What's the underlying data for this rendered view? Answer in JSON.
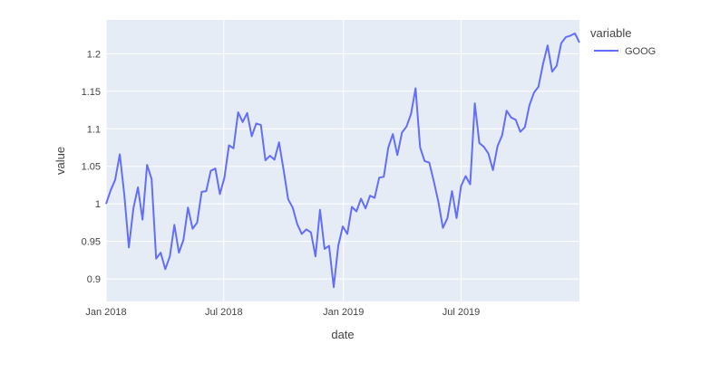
{
  "chart_data": {
    "type": "line",
    "xlabel": "date",
    "ylabel": "value",
    "x_ticks": [
      {
        "date": "2018-01-01",
        "label": "Jan 2018"
      },
      {
        "date": "2018-07-01",
        "label": "Jul 2018"
      },
      {
        "date": "2019-01-01",
        "label": "Jan 2019"
      },
      {
        "date": "2019-07-01",
        "label": "Jul 2019"
      }
    ],
    "y_ticks": [
      {
        "value": 0.9,
        "label": "0.9"
      },
      {
        "value": 0.95,
        "label": "0.95"
      },
      {
        "value": 1.0,
        "label": "1"
      },
      {
        "value": 1.05,
        "label": "1.05"
      },
      {
        "value": 1.1,
        "label": "1.1"
      },
      {
        "value": 1.15,
        "label": "1.15"
      },
      {
        "value": 1.2,
        "label": "1.2"
      }
    ],
    "xlim": [
      "2018-01-01",
      "2019-12-30"
    ],
    "ylim": [
      0.87,
      1.245
    ],
    "grid": true,
    "legend": {
      "title": "variable",
      "position": "right"
    },
    "colors": {
      "plot_bg": "#E5ECF6",
      "grid": "#FFFFFF",
      "series": "#636EFA"
    },
    "series": [
      {
        "name": "GOOG",
        "x": [
          "2018-01-01",
          "2018-01-08",
          "2018-01-15",
          "2018-01-22",
          "2018-01-29",
          "2018-02-05",
          "2018-02-12",
          "2018-02-19",
          "2018-02-26",
          "2018-03-05",
          "2018-03-12",
          "2018-03-19",
          "2018-03-26",
          "2018-04-02",
          "2018-04-09",
          "2018-04-16",
          "2018-04-23",
          "2018-04-30",
          "2018-05-07",
          "2018-05-14",
          "2018-05-21",
          "2018-05-28",
          "2018-06-04",
          "2018-06-11",
          "2018-06-18",
          "2018-06-25",
          "2018-07-02",
          "2018-07-09",
          "2018-07-16",
          "2018-07-23",
          "2018-07-30",
          "2018-08-06",
          "2018-08-13",
          "2018-08-20",
          "2018-08-27",
          "2018-09-03",
          "2018-09-10",
          "2018-09-17",
          "2018-09-24",
          "2018-10-01",
          "2018-10-08",
          "2018-10-15",
          "2018-10-22",
          "2018-10-29",
          "2018-11-05",
          "2018-11-12",
          "2018-11-19",
          "2018-11-26",
          "2018-12-03",
          "2018-12-10",
          "2018-12-17",
          "2018-12-24",
          "2018-12-31",
          "2019-01-07",
          "2019-01-14",
          "2019-01-21",
          "2019-01-28",
          "2019-02-04",
          "2019-02-11",
          "2019-02-18",
          "2019-02-25",
          "2019-03-04",
          "2019-03-11",
          "2019-03-18",
          "2019-03-25",
          "2019-04-01",
          "2019-04-08",
          "2019-04-15",
          "2019-04-22",
          "2019-04-29",
          "2019-05-06",
          "2019-05-13",
          "2019-05-20",
          "2019-05-27",
          "2019-06-03",
          "2019-06-10",
          "2019-06-17",
          "2019-06-24",
          "2019-07-01",
          "2019-07-08",
          "2019-07-15",
          "2019-07-22",
          "2019-07-29",
          "2019-08-05",
          "2019-08-12",
          "2019-08-19",
          "2019-08-26",
          "2019-09-02",
          "2019-09-09",
          "2019-09-16",
          "2019-09-23",
          "2019-09-30",
          "2019-10-07",
          "2019-10-14",
          "2019-10-21",
          "2019-10-28",
          "2019-11-04",
          "2019-11-11",
          "2019-11-18",
          "2019-11-25",
          "2019-12-02",
          "2019-12-09",
          "2019-12-16",
          "2019-12-23",
          "2019-12-30"
        ],
        "values": [
          1.0,
          1.018,
          1.032,
          1.066,
          1.012,
          0.942,
          0.994,
          1.022,
          0.979,
          1.052,
          1.033,
          0.927,
          0.935,
          0.913,
          0.93,
          0.972,
          0.935,
          0.952,
          0.995,
          0.967,
          0.975,
          1.016,
          1.017,
          1.044,
          1.047,
          1.013,
          1.035,
          1.078,
          1.074,
          1.122,
          1.109,
          1.121,
          1.09,
          1.107,
          1.105,
          1.058,
          1.064,
          1.059,
          1.082,
          1.045,
          1.006,
          0.995,
          0.973,
          0.96,
          0.966,
          0.962,
          0.93,
          0.992,
          0.94,
          0.944,
          0.889,
          0.944,
          0.97,
          0.96,
          0.996,
          0.99,
          1.007,
          0.994,
          1.011,
          1.008,
          1.035,
          1.036,
          1.075,
          1.093,
          1.065,
          1.095,
          1.103,
          1.12,
          1.154,
          1.075,
          1.057,
          1.055,
          1.03,
          1.003,
          0.968,
          0.981,
          1.017,
          0.981,
          1.024,
          1.037,
          1.026,
          1.134,
          1.081,
          1.076,
          1.067,
          1.045,
          1.077,
          1.091,
          1.124,
          1.115,
          1.112,
          1.096,
          1.102,
          1.131,
          1.148,
          1.156,
          1.186,
          1.211,
          1.176,
          1.184,
          1.214,
          1.222,
          1.224,
          1.227,
          1.215
        ]
      }
    ]
  }
}
